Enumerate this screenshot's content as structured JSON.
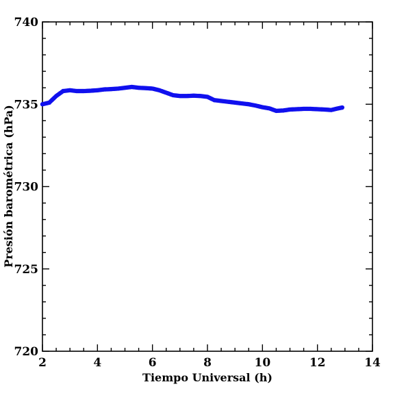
{
  "chart_data": {
    "type": "scatter",
    "title": "",
    "xlabel": "Tiempo Universal (h)",
    "ylabel": "Presión barométrica (hPa)",
    "xlim": [
      2,
      14
    ],
    "ylim": [
      720,
      740
    ],
    "x_ticks": [
      2,
      4,
      6,
      8,
      10,
      12,
      14
    ],
    "x_tick_labels": [
      "2",
      "4",
      "6",
      "8",
      "10",
      "12",
      "14"
    ],
    "y_ticks": [
      720,
      725,
      730,
      735,
      740
    ],
    "y_tick_labels": [
      "720",
      "725",
      "730",
      "735",
      "740"
    ],
    "x_minor_step": 0.5,
    "y_minor_step": 1,
    "grid": false,
    "marker_color": "#1010ee",
    "series": [
      {
        "x": [
          2.0,
          2.25,
          2.5,
          2.75,
          3.0,
          3.25,
          3.5,
          3.75,
          4.0,
          4.25,
          4.5,
          4.75,
          5.0,
          5.25,
          5.5,
          5.75,
          6.0,
          6.25,
          6.5,
          6.75,
          7.0,
          7.25,
          7.5,
          7.75,
          8.0,
          8.25,
          8.5,
          8.75,
          9.0,
          9.25,
          9.5,
          9.75,
          10.0,
          10.25,
          10.5,
          10.75,
          11.0,
          11.25,
          11.5,
          11.75,
          12.0,
          12.25,
          12.5,
          12.75,
          12.9
        ],
        "y": [
          735.0,
          735.1,
          735.5,
          735.8,
          735.85,
          735.8,
          735.8,
          735.82,
          735.85,
          735.9,
          735.92,
          735.95,
          736.0,
          736.05,
          736.0,
          735.98,
          735.95,
          735.85,
          735.7,
          735.55,
          735.5,
          735.5,
          735.52,
          735.5,
          735.45,
          735.25,
          735.2,
          735.15,
          735.1,
          735.05,
          735.0,
          734.92,
          734.82,
          734.75,
          734.6,
          734.62,
          734.68,
          734.7,
          734.72,
          734.72,
          734.7,
          734.68,
          734.65,
          734.75,
          734.8
        ]
      }
    ]
  }
}
